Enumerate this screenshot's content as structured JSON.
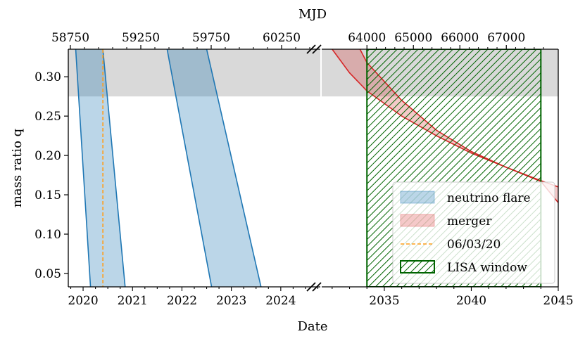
{
  "chart_data": {
    "type": "area",
    "xlabel": "Date",
    "ylabel": "mass ratio q",
    "top_xlabel": "MJD",
    "ylim": [
      0.033,
      0.335
    ],
    "yticks": [
      0.05,
      0.1,
      0.15,
      0.2,
      0.25,
      0.3
    ],
    "ytick_labels": [
      "0.05",
      "0.10",
      "0.15",
      "0.20",
      "0.25",
      "0.30"
    ],
    "left_panel": {
      "xlim": [
        2019.7,
        2024.8
      ],
      "xticks": [
        2020,
        2021,
        2022,
        2023,
        2024
      ],
      "xtick_labels": [
        "2020",
        "2021",
        "2022",
        "2023",
        "2024"
      ],
      "top_ticks": [
        58750,
        59250,
        59750,
        60250
      ],
      "top_tick_labels": [
        "58750",
        "59250",
        "59750",
        "60250"
      ]
    },
    "right_panel": {
      "xlim": [
        2031.4,
        2045
      ],
      "xticks": [
        2035,
        2040,
        2045
      ],
      "xtick_labels": [
        "2035",
        "2040",
        "2045"
      ],
      "top_ticks": [
        64000,
        65000,
        66000,
        67000
      ],
      "top_tick_labels": [
        "64000",
        "65000",
        "66000",
        "67000"
      ]
    },
    "gray_band": {
      "y_from": 0.275,
      "y_to": 0.335,
      "color": "#d9d9d9"
    },
    "flares": [
      {
        "name": "neutrino flare",
        "top_left_x": 2019.85,
        "top_right_x": 2020.4,
        "bottom_left_x": 2020.15,
        "bottom_right_x": 2020.85,
        "color": "#1f77b4"
      },
      {
        "name": "neutrino flare",
        "top_left_x": 2021.7,
        "top_right_x": 2022.5,
        "bottom_left_x": 2022.6,
        "bottom_right_x": 2023.6,
        "color": "#1f77b4"
      }
    ],
    "date_line": {
      "x": 2020.4,
      "label": "06/03/20",
      "color": "#ff9f1c"
    },
    "merger": {
      "label": "merger",
      "color": "#d62728",
      "upper": {
        "x": [
          2032.0,
          2033.0,
          2034.0,
          2036.0,
          2038.0,
          2040.0,
          2042.0,
          2044.0,
          2045.0
        ],
        "y": [
          0.335,
          0.305,
          0.282,
          0.25,
          0.225,
          0.203,
          0.185,
          0.168,
          0.16
        ]
      },
      "lower": {
        "x": [
          2033.6,
          2034.0,
          2036.0,
          2038.0,
          2040.0,
          2042.0,
          2044.0,
          2045.0
        ],
        "y": [
          0.335,
          0.318,
          0.27,
          0.232,
          0.205,
          0.185,
          0.167,
          0.14
        ]
      }
    },
    "lisa_window": {
      "label": "LISA window",
      "x_from": 2034.0,
      "x_to": 2044.0,
      "color": "#006400"
    },
    "legend": {
      "position": "lower-right",
      "entries": [
        "neutrino flare",
        "merger",
        "06/03/20",
        "LISA window"
      ]
    }
  }
}
